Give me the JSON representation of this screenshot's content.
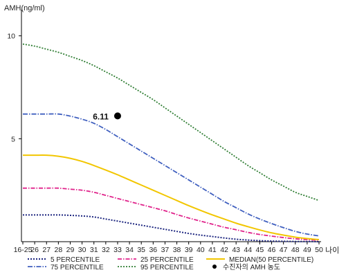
{
  "chart_data": {
    "type": "line",
    "ylabel": "AMH(ng/ml)",
    "xlabel": "나이",
    "ylim": [
      0,
      11
    ],
    "yticks": [
      5,
      10
    ],
    "categories": [
      "16-25",
      "26",
      "27",
      "28",
      "29",
      "30",
      "31",
      "32",
      "33",
      "34",
      "35",
      "36",
      "37",
      "38",
      "39",
      "40",
      "41",
      "42",
      "43",
      "44",
      "45",
      "46",
      "47",
      "48",
      "49",
      "50"
    ],
    "series": [
      {
        "name": "5 PERCENTILE",
        "color": "#1a237e",
        "dash": "2,2",
        "width": 2,
        "values": [
          1.3,
          1.3,
          1.3,
          1.3,
          1.28,
          1.25,
          1.2,
          1.1,
          1.0,
          0.9,
          0.8,
          0.7,
          0.6,
          0.5,
          0.4,
          0.32,
          0.25,
          0.18,
          0.12,
          0.08,
          0.05,
          0.03,
          0.02,
          0.01,
          0.01,
          0.0
        ]
      },
      {
        "name": "25 PERCENTILE",
        "color": "#e0218a",
        "dash": "6,2,1.5,2",
        "width": 1.8,
        "values": [
          2.6,
          2.6,
          2.6,
          2.6,
          2.55,
          2.5,
          2.4,
          2.25,
          2.1,
          1.95,
          1.8,
          1.65,
          1.5,
          1.32,
          1.15,
          1.0,
          0.85,
          0.7,
          0.58,
          0.45,
          0.35,
          0.27,
          0.2,
          0.14,
          0.1,
          0.07
        ]
      },
      {
        "name": "MEDIAN(50 PERCENTILE)",
        "color": "#f2c600",
        "dash": "",
        "width": 2,
        "values": [
          4.2,
          4.2,
          4.2,
          4.15,
          4.05,
          3.9,
          3.7,
          3.48,
          3.25,
          3.0,
          2.75,
          2.5,
          2.25,
          2.0,
          1.75,
          1.52,
          1.3,
          1.1,
          0.9,
          0.73,
          0.57,
          0.43,
          0.32,
          0.22,
          0.15,
          0.1
        ]
      },
      {
        "name": "75 PERCENTILE",
        "color": "#3f5fbf",
        "dash": "7,2,1.5,2",
        "width": 1.8,
        "values": [
          6.2,
          6.2,
          6.2,
          6.2,
          6.1,
          5.95,
          5.75,
          5.45,
          5.1,
          4.75,
          4.4,
          4.05,
          3.7,
          3.35,
          3.0,
          2.65,
          2.3,
          1.95,
          1.65,
          1.35,
          1.1,
          0.88,
          0.68,
          0.5,
          0.37,
          0.28
        ]
      },
      {
        "name": "95 PERCENTILE",
        "color": "#2e7d32",
        "dash": "2,2",
        "width": 1.8,
        "values": [
          9.6,
          9.5,
          9.35,
          9.2,
          9.0,
          8.8,
          8.55,
          8.25,
          7.95,
          7.6,
          7.25,
          6.9,
          6.5,
          6.1,
          5.7,
          5.3,
          4.9,
          4.5,
          4.1,
          3.7,
          3.35,
          3.0,
          2.7,
          2.4,
          2.2,
          2.0
        ]
      }
    ],
    "points": [
      {
        "name": "수진자의 AMH 농도",
        "x": "33",
        "value": 6.11,
        "label": "6.11"
      }
    ],
    "legend": [
      {
        "name": "5 PERCENTILE",
        "marker": "line",
        "color": "#1a237e",
        "dash": "2,2",
        "width": 2
      },
      {
        "name": "25 PERCENTILE",
        "marker": "line",
        "color": "#e0218a",
        "dash": "6,2,1.5,2",
        "width": 1.8
      },
      {
        "name": "MEDIAN(50 PERCENTILE)",
        "marker": "line",
        "color": "#f2c600",
        "dash": "",
        "width": 2
      },
      {
        "name": "75 PERCENTILE",
        "marker": "line",
        "color": "#3f5fbf",
        "dash": "7,2,1.5,2",
        "width": 1.8
      },
      {
        "name": "95 PERCENTILE",
        "marker": "line",
        "color": "#2e7d32",
        "dash": "2,2",
        "width": 1.8
      },
      {
        "name": "수진자의 AMH 농도",
        "marker": "dot",
        "color": "#000000"
      }
    ],
    "legend_position": "bottom",
    "grid": false
  }
}
